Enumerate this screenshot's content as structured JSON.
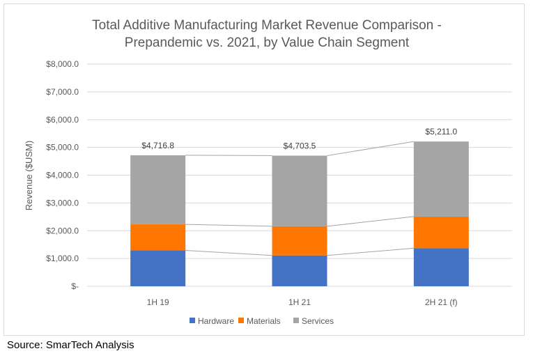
{
  "chart_data": {
    "type": "bar",
    "stacked": true,
    "title_lines": [
      "Total Additive Manufacturing Market Revenue Comparison -",
      "Prepandemic vs. 2021, by Value Chain Segment"
    ],
    "xlabel": "",
    "ylabel": "Revenue ($USM)",
    "ylim": [
      0,
      8000
    ],
    "yticks": [
      0,
      1000,
      2000,
      3000,
      4000,
      5000,
      6000,
      7000,
      8000
    ],
    "ytick_labels": [
      "$-",
      "$1,000.0",
      "$2,000.0",
      "$3,000.0",
      "$4,000.0",
      "$5,000.0",
      "$6,000.0",
      "$7,000.0",
      "$8,000.0"
    ],
    "grid": true,
    "legend_position": "bottom",
    "categories": [
      "1H 19",
      "1H 21",
      "2H 21 (f)"
    ],
    "series": [
      {
        "name": "Hardware",
        "color": "#4472c4",
        "values": [
          1290,
          1110,
          1370
        ]
      },
      {
        "name": "Materials",
        "color": "#ff7700",
        "values": [
          940,
          1050,
          1140
        ]
      },
      {
        "name": "Services",
        "color": "#a5a5a5",
        "values": [
          2486.8,
          2543.5,
          2701
        ]
      }
    ],
    "totals": [
      4716.8,
      4703.5,
      5211.0
    ],
    "total_labels": [
      "$4,716.8",
      "$4,703.5",
      "$5,211.0"
    ],
    "series_lines": true
  },
  "source": "Source: SmarTech Analysis"
}
